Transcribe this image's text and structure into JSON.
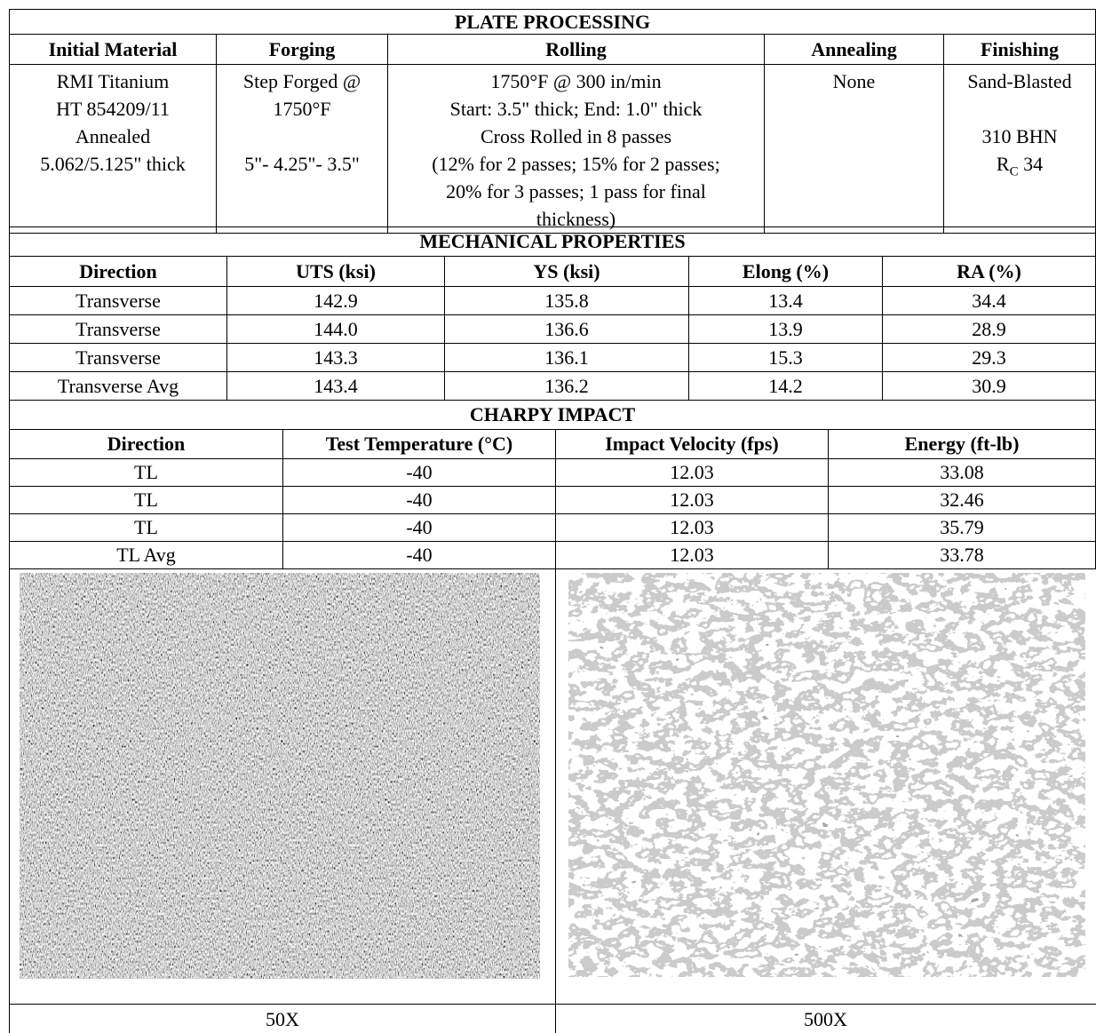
{
  "plate_processing": {
    "title": "PLATE PROCESSING",
    "headers": [
      "Initial Material",
      "Forging",
      "Rolling",
      "Annealing",
      "Finishing"
    ],
    "initial_material": [
      "RMI Titanium",
      "HT 854209/11",
      "Annealed",
      "5.062/5.125\" thick"
    ],
    "forging": [
      "Step Forged @",
      "1750°F",
      "5\"- 4.25\"- 3.5\""
    ],
    "rolling": [
      "1750°F @ 300 in/min",
      "Start: 3.5\" thick; End: 1.0\" thick",
      "Cross Rolled in 8 passes",
      "(12% for 2 passes; 15% for 2 passes;",
      "20% for 3 passes; 1 pass for final",
      "thickness)"
    ],
    "annealing": "None",
    "finishing": {
      "lines": [
        "Sand-Blasted",
        "310 BHN"
      ],
      "hardness": {
        "symbol": "R",
        "subscript": "C",
        "value": "34"
      }
    }
  },
  "mechanical_properties": {
    "title": "MECHANICAL PROPERTIES",
    "headers": [
      "Direction",
      "UTS (ksi)",
      "YS (ksi)",
      "Elong (%)",
      "RA (%)"
    ],
    "rows": [
      [
        "Transverse",
        "142.9",
        "135.8",
        "13.4",
        "34.4"
      ],
      [
        "Transverse",
        "144.0",
        "136.6",
        "13.9",
        "28.9"
      ],
      [
        "Transverse",
        "143.3",
        "136.1",
        "15.3",
        "29.3"
      ],
      [
        "Transverse Avg",
        "143.4",
        "136.2",
        "14.2",
        "30.9"
      ]
    ]
  },
  "charpy_impact": {
    "title": "CHARPY IMPACT",
    "headers": [
      "Direction",
      "Test Temperature (°C)",
      "Impact Velocity (fps)",
      "Energy (ft-lb)"
    ],
    "rows": [
      [
        "TL",
        "-40",
        "12.03",
        "33.08"
      ],
      [
        "TL",
        "-40",
        "12.03",
        "32.46"
      ],
      [
        "TL",
        "-40",
        "12.03",
        "35.79"
      ],
      [
        "TL Avg",
        "-40",
        "12.03",
        "33.78"
      ]
    ]
  },
  "micrographs": [
    {
      "caption": "50X"
    },
    {
      "caption": "500X"
    }
  ]
}
